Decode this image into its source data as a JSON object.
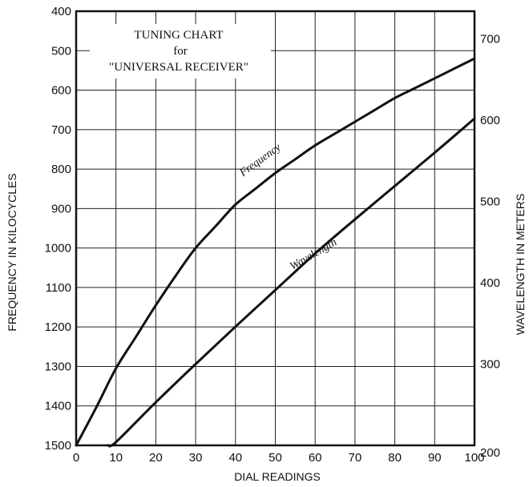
{
  "chart_data": {
    "type": "line",
    "title_lines": [
      "TUNING CHART",
      "for",
      "\"UNIVERSAL RECEIVER\""
    ],
    "xlabel": "DIAL READINGS",
    "ylabel_left": "FREQUENCY IN KILOCYCLES",
    "ylabel_right": "WAVELENGTH IN METERS",
    "xlim": [
      0,
      100
    ],
    "ylim_left": [
      400,
      1500
    ],
    "ylim_left_inverted": true,
    "ylim_right": [
      200,
      734
    ],
    "grid": true,
    "x_ticks": [
      "0",
      "10",
      "20",
      "30",
      "40",
      "50",
      "60",
      "70",
      "80",
      "90",
      "100"
    ],
    "y_left_ticks": [
      "400",
      "500",
      "600",
      "700",
      "800",
      "900",
      "1000",
      "1100",
      "1200",
      "1300",
      "1400",
      "1500"
    ],
    "y_right_ticks": [
      "200",
      "300",
      "400",
      "500",
      "600",
      "700"
    ],
    "series": [
      {
        "name": "Frequency",
        "axis": "left",
        "x": [
          0,
          5,
          10,
          15,
          20,
          25,
          30,
          35,
          40,
          45,
          50,
          55,
          60,
          65,
          70,
          75,
          80,
          85,
          90,
          95,
          100
        ],
        "y": [
          1500,
          1405,
          1305,
          1225,
          1145,
          1070,
          1000,
          945,
          890,
          850,
          810,
          775,
          740,
          710,
          680,
          650,
          620,
          595,
          570,
          545,
          520
        ]
      },
      {
        "name": "Wavelength",
        "axis": "right",
        "x": [
          8,
          10,
          20,
          30,
          40,
          50,
          60,
          70,
          80,
          90,
          100
        ],
        "y": [
          200,
          204,
          253,
          300,
          346,
          391,
          436,
          478,
          519,
          560,
          602
        ]
      }
    ]
  }
}
